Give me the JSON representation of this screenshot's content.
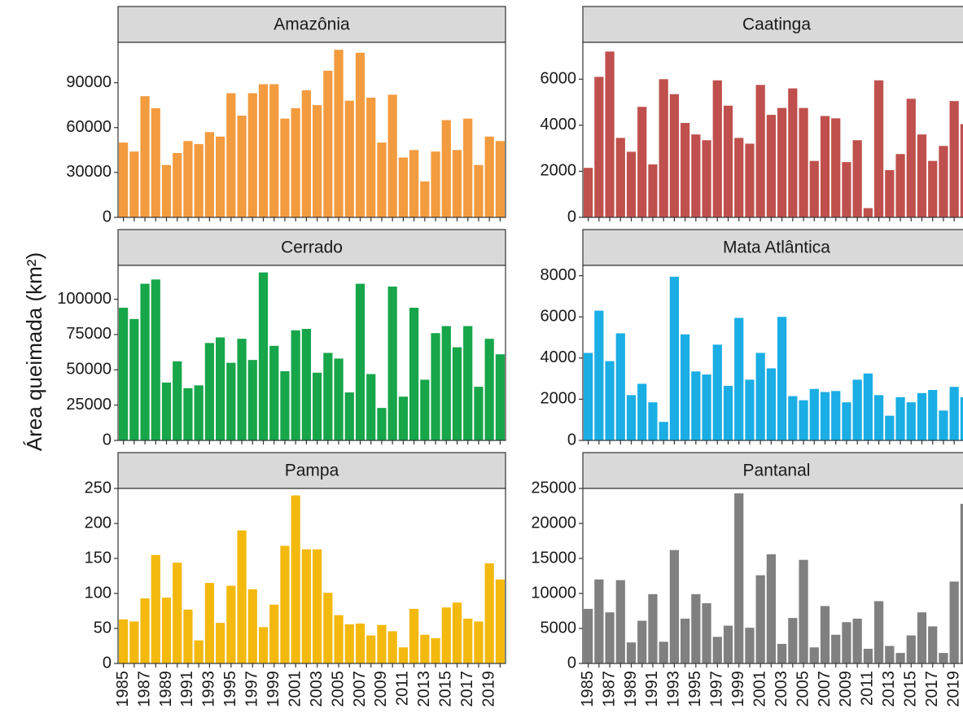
{
  "chart_data": {
    "type": "bar",
    "ylabel": "Área queimada (km²)",
    "xlabel": "",
    "years": [
      1985,
      1986,
      1987,
      1988,
      1989,
      1990,
      1991,
      1992,
      1993,
      1994,
      1995,
      1996,
      1997,
      1998,
      1999,
      2000,
      2001,
      2002,
      2003,
      2004,
      2005,
      2006,
      2007,
      2008,
      2009,
      2010,
      2011,
      2012,
      2013,
      2014,
      2015,
      2016,
      2017,
      2018,
      2019,
      2020
    ],
    "x_tick_labels": [
      "1985",
      "1987",
      "1989",
      "1991",
      "1993",
      "1995",
      "1997",
      "1999",
      "2001",
      "2003",
      "2005",
      "2007",
      "2009",
      "2011",
      "2013",
      "2015",
      "2017",
      "2019"
    ],
    "grid": false,
    "facets": [
      {
        "title": "Amazônia",
        "color": "#F39B3F",
        "ylim": [
          0,
          117000
        ],
        "yticks": [
          0,
          30000,
          60000,
          90000
        ],
        "values": [
          50000,
          44000,
          81000,
          73000,
          35000,
          43000,
          51000,
          49000,
          57000,
          54000,
          83000,
          68000,
          83000,
          89000,
          89000,
          66000,
          73000,
          85000,
          75000,
          98000,
          112000,
          78000,
          110000,
          80000,
          50000,
          82000,
          40000,
          45000,
          24000,
          44000,
          65000,
          45000,
          66000,
          35000,
          54000,
          51000
        ]
      },
      {
        "title": "Caatinga",
        "color": "#C0504D",
        "ylim": [
          0,
          7600
        ],
        "yticks": [
          0,
          2000,
          4000,
          6000
        ],
        "values": [
          2150,
          6100,
          7200,
          3450,
          2850,
          4800,
          2300,
          6000,
          5350,
          4100,
          3600,
          3350,
          5950,
          4850,
          3450,
          3200,
          5750,
          4450,
          4750,
          5600,
          4750,
          2450,
          4400,
          4300,
          2400,
          3350,
          400,
          5950,
          2050,
          2750,
          5150,
          3600,
          2450,
          3100,
          5050,
          4050
        ]
      },
      {
        "title": "Cerrado",
        "color": "#17A64A",
        "ylim": [
          0,
          124000
        ],
        "yticks": [
          0,
          25000,
          50000,
          75000,
          100000
        ],
        "values": [
          94000,
          86000,
          111000,
          114000,
          41000,
          56000,
          37000,
          39000,
          69000,
          73000,
          55000,
          72000,
          57000,
          119000,
          67000,
          49000,
          78000,
          79000,
          48000,
          62000,
          58000,
          34000,
          111000,
          47000,
          23000,
          109000,
          31000,
          94000,
          43000,
          76000,
          81000,
          66000,
          81000,
          38000,
          72000,
          61000
        ]
      },
      {
        "title": "Mata Atlântica",
        "color": "#1AAEE4",
        "ylim": [
          0,
          8500
        ],
        "yticks": [
          0,
          2000,
          4000,
          6000,
          8000
        ],
        "values": [
          4250,
          6300,
          3850,
          5200,
          2200,
          2750,
          1850,
          900,
          7950,
          5150,
          3350,
          3200,
          4650,
          2650,
          5950,
          2950,
          4250,
          3500,
          6000,
          2150,
          1950,
          2500,
          2350,
          2400,
          1850,
          2950,
          3250,
          2200,
          1200,
          2100,
          1850,
          2300,
          2450,
          1450,
          2600,
          2100
        ]
      },
      {
        "title": "Pampa",
        "color": "#F3B90F",
        "ylim": [
          0,
          250
        ],
        "yticks": [
          0,
          50,
          100,
          150,
          200,
          250
        ],
        "values": [
          63,
          60,
          93,
          155,
          94,
          144,
          77,
          33,
          115,
          58,
          111,
          190,
          106,
          52,
          84,
          168,
          240,
          163,
          163,
          101,
          69,
          56,
          57,
          40,
          55,
          46,
          23,
          78,
          41,
          36,
          80,
          87,
          64,
          60,
          143,
          120
        ]
      },
      {
        "title": "Pantanal",
        "color": "#808080",
        "ylim": [
          0,
          25000
        ],
        "yticks": [
          0,
          5000,
          10000,
          15000,
          20000,
          25000
        ],
        "values": [
          7800,
          12000,
          7300,
          11900,
          3000,
          6100,
          9900,
          3100,
          16200,
          6400,
          9900,
          8600,
          3800,
          5400,
          24300,
          5100,
          12600,
          15600,
          2800,
          6500,
          14800,
          2300,
          8200,
          4100,
          5900,
          6400,
          2100,
          8900,
          2500,
          1500,
          4000,
          7300,
          5300,
          1500,
          11700,
          22800
        ]
      }
    ]
  }
}
